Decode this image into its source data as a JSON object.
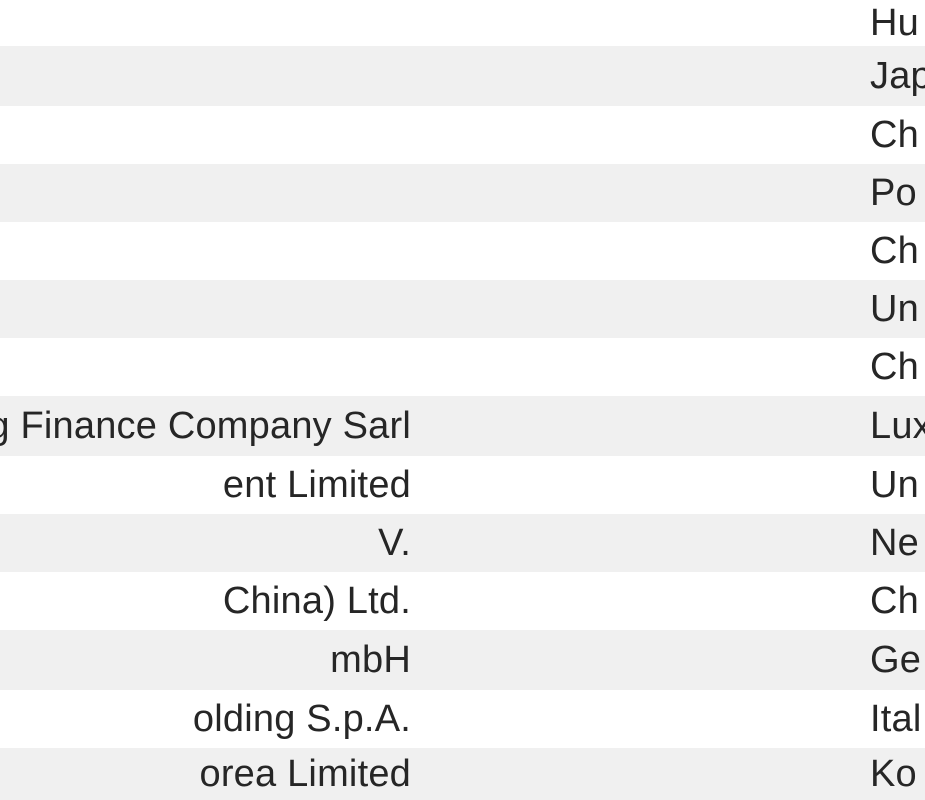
{
  "rows": [
    {
      "name": "",
      "country": "Hu"
    },
    {
      "name": "",
      "country": "Jap"
    },
    {
      "name": "",
      "country": "Ch"
    },
    {
      "name": "",
      "country": "Po"
    },
    {
      "name": "",
      "country": "Ch"
    },
    {
      "name": "",
      "country": "Un"
    },
    {
      "name": "",
      "country": "Ch"
    },
    {
      "name": "rg Finance Company Sarl",
      "country": "Lux"
    },
    {
      "name": "ent Limited",
      "country": "Un"
    },
    {
      "name": "V.",
      "country": "Ne"
    },
    {
      "name": "China) Ltd.",
      "country": "Ch"
    },
    {
      "name": "mbH",
      "country": "Ge"
    },
    {
      "name": "olding S.p.A.",
      "country": "Ital"
    },
    {
      "name": "orea Limited",
      "country": "Ko"
    }
  ]
}
